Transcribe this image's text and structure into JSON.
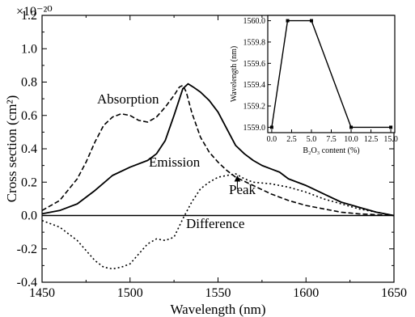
{
  "chart_data": [
    {
      "type": "line",
      "title": "",
      "xlabel": "Wavelength (nm)",
      "ylabel": "Cross section (cm²)",
      "y_multiplier": "×10⁻²⁰",
      "xlim": [
        1450,
        1650
      ],
      "ylim": [
        -0.4,
        1.2
      ],
      "xticks": [
        "1450",
        "1500",
        "1550",
        "1600",
        "1650"
      ],
      "yticks": [
        "-0.4",
        "-0.2",
        "0.0",
        "0.2",
        "0.4",
        "0.6",
        "0.8",
        "1.0",
        "1.2"
      ],
      "grid": false,
      "series": [
        {
          "name": "Absorption",
          "style": "dashed",
          "x": [
            1450,
            1460,
            1470,
            1475,
            1480,
            1485,
            1490,
            1495,
            1500,
            1505,
            1510,
            1515,
            1520,
            1525,
            1528,
            1530,
            1532,
            1535,
            1540,
            1545,
            1550,
            1555,
            1560,
            1570,
            1580,
            1590,
            1600,
            1610,
            1620,
            1630,
            1640,
            1650
          ],
          "y": [
            0.03,
            0.09,
            0.22,
            0.32,
            0.44,
            0.54,
            0.59,
            0.61,
            0.6,
            0.57,
            0.56,
            0.59,
            0.65,
            0.72,
            0.77,
            0.78,
            0.74,
            0.62,
            0.47,
            0.38,
            0.32,
            0.27,
            0.23,
            0.18,
            0.13,
            0.09,
            0.06,
            0.04,
            0.02,
            0.01,
            0.005,
            0.0
          ]
        },
        {
          "name": "Emission",
          "style": "solid",
          "x": [
            1450,
            1460,
            1470,
            1480,
            1490,
            1500,
            1510,
            1515,
            1520,
            1525,
            1530,
            1533,
            1536,
            1540,
            1545,
            1550,
            1555,
            1560,
            1565,
            1570,
            1575,
            1580,
            1585,
            1590,
            1600,
            1610,
            1620,
            1630,
            1640,
            1650
          ],
          "y": [
            0.01,
            0.03,
            0.07,
            0.15,
            0.24,
            0.29,
            0.33,
            0.37,
            0.45,
            0.6,
            0.76,
            0.79,
            0.77,
            0.74,
            0.69,
            0.62,
            0.52,
            0.42,
            0.37,
            0.33,
            0.3,
            0.28,
            0.26,
            0.22,
            0.18,
            0.13,
            0.08,
            0.05,
            0.02,
            0.0
          ]
        },
        {
          "name": "Difference",
          "style": "dotted",
          "x": [
            1450,
            1460,
            1470,
            1480,
            1485,
            1490,
            1495,
            1500,
            1505,
            1510,
            1515,
            1520,
            1525,
            1530,
            1535,
            1540,
            1545,
            1550,
            1555,
            1560,
            1565,
            1570,
            1580,
            1590,
            1600,
            1610,
            1620,
            1630,
            1640,
            1650
          ],
          "y": [
            -0.03,
            -0.07,
            -0.15,
            -0.27,
            -0.31,
            -0.32,
            -0.31,
            -0.29,
            -0.23,
            -0.17,
            -0.14,
            -0.15,
            -0.13,
            -0.02,
            0.08,
            0.16,
            0.2,
            0.23,
            0.24,
            0.25,
            0.22,
            0.2,
            0.19,
            0.17,
            0.14,
            0.1,
            0.07,
            0.04,
            0.02,
            0.0
          ]
        }
      ],
      "annotations": {
        "absorption": "Absorption",
        "emission": "Emission",
        "difference": "Difference",
        "peak": "Peak",
        "peak_x": 1561,
        "peak_y": 0.245
      }
    },
    {
      "type": "line",
      "title": "",
      "xlabel": "B₂O₃ content (%)",
      "ylabel": "Wavelength (nm)",
      "xlim": [
        -0.5,
        15.5
      ],
      "ylim": [
        1558.95,
        1560.05
      ],
      "xticks": [
        "0.0",
        "2.5",
        "5.0",
        "7.5",
        "10.0",
        "12.5",
        "15.0"
      ],
      "yticks": [
        "1559.0",
        "1559.2",
        "1559.4",
        "1559.6",
        "1559.8",
        "1560.0"
      ],
      "grid": false,
      "series": [
        {
          "name": "",
          "x": [
            0,
            2,
            5,
            10,
            15
          ],
          "y": [
            1559.0,
            1560.0,
            1560.0,
            1559.0,
            1559.0
          ]
        }
      ]
    }
  ]
}
